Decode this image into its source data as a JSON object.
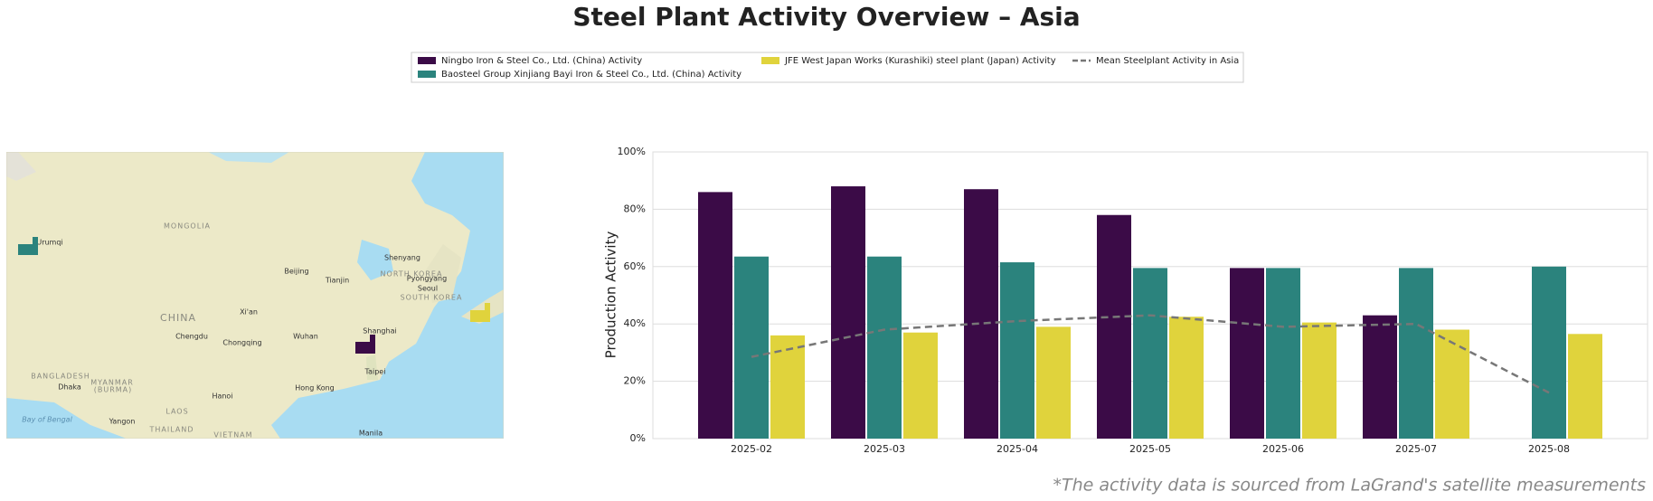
{
  "chart_data": {
    "type": "bar",
    "title": "Steel Plant Activity Overview – Asia",
    "ylabel": "Production Activity",
    "footnote": "*The activity data is sourced from LaGrand's satellite measurements",
    "categories": [
      "2025-02",
      "2025-03",
      "2025-04",
      "2025-05",
      "2025-06",
      "2025-07",
      "2025-08"
    ],
    "series": [
      {
        "name": "Ningbo Iron & Steel Co., Ltd. (China) Activity",
        "type": "bar",
        "color": "#3b0b47",
        "values": [
          86,
          88,
          87,
          78,
          59.5,
          43,
          null
        ]
      },
      {
        "name": "Baosteel Group Xinjiang Bayi Iron & Steel Co., Ltd. (China) Activity",
        "type": "bar",
        "color": "#2b837d",
        "values": [
          63.5,
          63.5,
          61.5,
          59.5,
          59.5,
          59.5,
          60
        ]
      },
      {
        "name": "JFE West Japan Works (Kurashiki) steel plant (Japan) Activity",
        "type": "bar",
        "color": "#e0d33c",
        "values": [
          36,
          37,
          39,
          42.5,
          40.5,
          38,
          36.5
        ]
      },
      {
        "name": "Mean Steelplant Activity in Asia",
        "type": "line",
        "color": "#777777",
        "values": [
          28.5,
          38,
          41,
          43,
          39,
          40,
          16
        ]
      }
    ],
    "ylim": [
      0,
      100
    ],
    "yticks": [
      {
        "value": 0,
        "label": "0%"
      },
      {
        "value": 20,
        "label": "20%"
      },
      {
        "value": 40,
        "label": "40%"
      },
      {
        "value": 60,
        "label": "60%"
      },
      {
        "value": 80,
        "label": "80%"
      },
      {
        "value": 100,
        "label": "100%"
      }
    ],
    "grid": true,
    "map": {
      "labels": [
        "MONGOLIA",
        "Urumqi",
        "Beijing",
        "Tianjin",
        "Shenyang",
        "NORTH KOREA",
        "Pyongyang",
        "Seoul",
        "SOUTH KOREA",
        "CHINA",
        "Xi'an",
        "Chengdu",
        "Chongqing",
        "Wuhan",
        "Shanghai",
        "Taipei",
        "Hong Kong",
        "Hanoi",
        "BANGLADESH",
        "Dhaka",
        "MYANMAR",
        "(BURMA)",
        "LAOS",
        "Yangon",
        "THAILAND",
        "Bay of Bengal",
        "VIETNAM",
        "Manila"
      ]
    }
  }
}
